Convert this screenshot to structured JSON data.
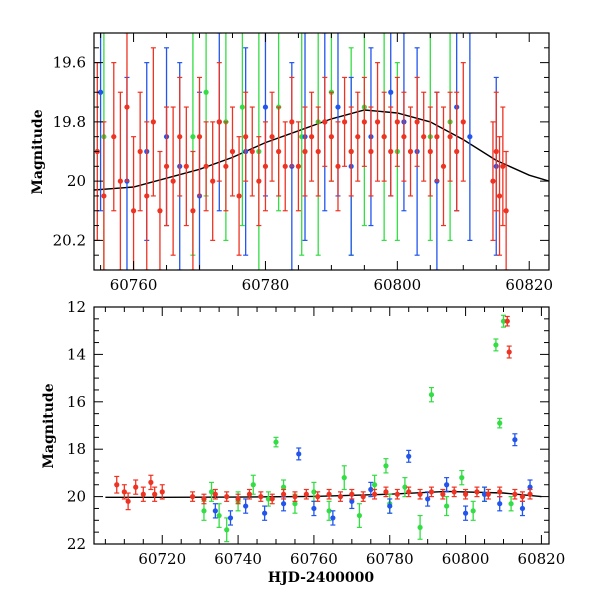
{
  "colors": {
    "green": "#33dd44",
    "blue": "#2255ee",
    "red": "#ee3322",
    "curve": "#000000",
    "frame": "#000000"
  },
  "chart_data": [
    {
      "type": "scatter",
      "title": "",
      "xlabel": "",
      "ylabel": "Magnitude",
      "xlim": [
        60754,
        60823
      ],
      "ylim": [
        20.3,
        19.5
      ],
      "y_inverted": true,
      "xticks": [
        60760,
        60780,
        60800,
        60820
      ],
      "yticks": [
        19.6,
        19.8,
        20,
        20.2
      ],
      "ytick_labels": [
        "19.6",
        "19.8",
        "20",
        "20.2"
      ],
      "grid": false,
      "model_curve": {
        "x": [
          60754,
          60760,
          60765,
          60770,
          60775,
          60780,
          60785,
          60790,
          60795,
          60800,
          60805,
          60810,
          60815,
          60820,
          60823
        ],
        "y": [
          20.03,
          20.02,
          19.99,
          19.96,
          19.92,
          19.87,
          19.83,
          19.79,
          19.76,
          19.77,
          19.8,
          19.86,
          19.93,
          19.98,
          20.0
        ]
      },
      "series": [
        {
          "color": "green",
          "points": [
            [
              60755.5,
              19.85,
              0.45
            ],
            [
              60769,
              19.85,
              0.4
            ],
            [
              60771,
              19.7,
              0.35
            ],
            [
              60774,
              19.8,
              0.4
            ],
            [
              60776.5,
              19.75,
              0.4
            ],
            [
              60779,
              19.9,
              0.45
            ],
            [
              60782,
              19.75,
              0.35
            ],
            [
              60785.5,
              19.85,
              0.4
            ],
            [
              60788,
              19.8,
              0.45
            ],
            [
              60790,
              19.7,
              0.3
            ],
            [
              60793,
              19.9,
              0.35
            ],
            [
              60795,
              19.75,
              0.4
            ],
            [
              60798,
              19.85,
              0.35
            ],
            [
              60800,
              19.9,
              0.3
            ],
            [
              60805,
              19.85,
              0.35
            ],
            [
              60808,
              19.8,
              0.4
            ]
          ]
        },
        {
          "color": "blue",
          "points": [
            [
              60755,
              19.7,
              0.4
            ],
            [
              60759,
              20.0,
              0.35
            ],
            [
              60762,
              19.9,
              0.3
            ],
            [
              60765,
              19.85,
              0.3
            ],
            [
              60767,
              19.95,
              0.35
            ],
            [
              60770,
              20.05,
              0.35
            ],
            [
              60773,
              19.8,
              0.3
            ],
            [
              60777,
              19.9,
              0.35
            ],
            [
              60780,
              19.75,
              0.3
            ],
            [
              60784,
              19.95,
              0.35
            ],
            [
              60786,
              19.85,
              0.35
            ],
            [
              60789,
              19.8,
              0.3
            ],
            [
              60791,
              19.75,
              0.3
            ],
            [
              60793,
              19.95,
              0.3
            ],
            [
              60796,
              19.85,
              0.3
            ],
            [
              60799,
              19.7,
              0.35
            ],
            [
              60801,
              19.8,
              0.3
            ],
            [
              60803,
              19.9,
              0.35
            ],
            [
              60806,
              20.0,
              0.3
            ],
            [
              60809,
              19.75,
              0.35
            ],
            [
              60811,
              19.85,
              0.35
            ],
            [
              60815,
              19.95,
              0.3
            ]
          ]
        },
        {
          "color": "red",
          "points": [
            [
              60754.5,
              19.9,
              0.3
            ],
            [
              60755.5,
              20.05,
              0.25
            ],
            [
              60757,
              19.85,
              0.25
            ],
            [
              60758,
              20.0,
              0.3
            ],
            [
              60759,
              19.75,
              0.25
            ],
            [
              60760,
              20.1,
              0.25
            ],
            [
              60761,
              19.9,
              0.2
            ],
            [
              60762,
              20.05,
              0.25
            ],
            [
              60763,
              19.8,
              0.25
            ],
            [
              60764,
              20.1,
              0.2
            ],
            [
              60765,
              19.95,
              0.2
            ],
            [
              60766,
              20.0,
              0.25
            ],
            [
              60767,
              19.85,
              0.2
            ],
            [
              60768,
              19.95,
              0.2
            ],
            [
              60769,
              20.1,
              0.2
            ],
            [
              60770,
              19.85,
              0.2
            ],
            [
              60771,
              19.95,
              0.15
            ],
            [
              60772,
              20.0,
              0.2
            ],
            [
              60773,
              19.8,
              0.2
            ],
            [
              60774,
              19.95,
              0.15
            ],
            [
              60775,
              19.9,
              0.15
            ],
            [
              60776,
              20.05,
              0.2
            ],
            [
              60777,
              19.85,
              0.15
            ],
            [
              60778,
              19.9,
              0.15
            ],
            [
              60779,
              20.0,
              0.15
            ],
            [
              60780,
              19.95,
              0.15
            ],
            [
              60781,
              19.85,
              0.15
            ],
            [
              60782,
              19.9,
              0.15
            ],
            [
              60783,
              19.95,
              0.15
            ],
            [
              60784,
              19.8,
              0.15
            ],
            [
              60785,
              19.95,
              0.15
            ],
            [
              60786,
              19.9,
              0.15
            ],
            [
              60787,
              19.85,
              0.15
            ],
            [
              60788,
              19.9,
              0.15
            ],
            [
              60789,
              19.8,
              0.15
            ],
            [
              60790,
              19.85,
              0.15
            ],
            [
              60791,
              19.95,
              0.15
            ],
            [
              60792,
              19.8,
              0.15
            ],
            [
              60793,
              19.9,
              0.15
            ],
            [
              60794,
              19.85,
              0.15
            ],
            [
              60795,
              19.8,
              0.15
            ],
            [
              60796,
              19.9,
              0.15
            ],
            [
              60797,
              19.8,
              0.2
            ],
            [
              60798,
              19.85,
              0.15
            ],
            [
              60799,
              19.9,
              0.15
            ],
            [
              60800,
              19.8,
              0.15
            ],
            [
              60801,
              19.85,
              0.15
            ],
            [
              60802,
              19.9,
              0.15
            ],
            [
              60803,
              19.8,
              0.15
            ],
            [
              60804,
              19.85,
              0.15
            ],
            [
              60805,
              19.9,
              0.15
            ],
            [
              60806,
              19.85,
              0.15
            ],
            [
              60807,
              19.95,
              0.2
            ],
            [
              60808,
              19.85,
              0.15
            ],
            [
              60809,
              19.9,
              0.2
            ],
            [
              60810,
              19.8,
              0.2
            ],
            [
              60814.5,
              20.0,
              0.2
            ],
            [
              60815,
              19.9,
              0.2
            ],
            [
              60815.5,
              20.05,
              0.2
            ],
            [
              60816,
              19.95,
              0.2
            ],
            [
              60816.5,
              20.1,
              0.2
            ]
          ]
        }
      ]
    },
    {
      "type": "scatter",
      "title": "",
      "xlabel": "HJD-2400000",
      "ylabel": "Magnitude",
      "xlim": [
        60702,
        60822
      ],
      "ylim": [
        22,
        12
      ],
      "y_inverted": true,
      "xticks": [
        60720,
        60740,
        60760,
        60780,
        60800,
        60820
      ],
      "yticks": [
        12,
        14,
        16,
        18,
        20,
        22
      ],
      "ytick_labels": [
        "12",
        "14",
        "16",
        "18",
        "20",
        "22"
      ],
      "grid": false,
      "model_curve": {
        "x": [
          60705,
          60720,
          60740,
          60760,
          60780,
          60795,
          60810,
          60820
        ],
        "y": [
          20.03,
          20.03,
          20.02,
          19.99,
          19.9,
          19.78,
          19.85,
          20.0
        ]
      },
      "series": [
        {
          "color": "green",
          "points": [
            [
              60731,
              20.6,
              0.4
            ],
            [
              60733,
              19.8,
              0.4
            ],
            [
              60735,
              20.8,
              0.5
            ],
            [
              60737,
              21.4,
              0.5
            ],
            [
              60740,
              20.2,
              0.4
            ],
            [
              60744,
              19.5,
              0.4
            ],
            [
              60748,
              20.1,
              0.3
            ],
            [
              60750,
              17.7,
              0.2
            ],
            [
              60752,
              19.6,
              0.3
            ],
            [
              60755,
              20.3,
              0.4
            ],
            [
              60760,
              19.8,
              0.4
            ],
            [
              60764,
              20.6,
              0.4
            ],
            [
              60768,
              19.2,
              0.5
            ],
            [
              60772,
              20.8,
              0.5
            ],
            [
              60776,
              19.5,
              0.4
            ],
            [
              60779,
              18.7,
              0.3
            ],
            [
              60780,
              20.3,
              0.4
            ],
            [
              60784,
              19.6,
              0.4
            ],
            [
              60788,
              21.3,
              0.5
            ],
            [
              60791,
              15.7,
              0.3
            ],
            [
              60795,
              20.4,
              0.4
            ],
            [
              60799,
              19.2,
              0.3
            ],
            [
              60802,
              20.6,
              0.4
            ],
            [
              60805,
              19.9,
              0.3
            ],
            [
              60808,
              13.6,
              0.25
            ],
            [
              60809,
              16.9,
              0.2
            ],
            [
              60810,
              12.6,
              0.25
            ],
            [
              60812,
              20.3,
              0.3
            ]
          ]
        },
        {
          "color": "blue",
          "points": [
            [
              60734,
              20.6,
              0.3
            ],
            [
              60738,
              20.9,
              0.3
            ],
            [
              60742,
              20.4,
              0.3
            ],
            [
              60747,
              20.7,
              0.3
            ],
            [
              60752,
              20.3,
              0.3
            ],
            [
              60756,
              18.2,
              0.25
            ],
            [
              60760,
              20.5,
              0.3
            ],
            [
              60765,
              20.9,
              0.3
            ],
            [
              60770,
              20.2,
              0.3
            ],
            [
              60775,
              19.7,
              0.3
            ],
            [
              60780,
              20.4,
              0.3
            ],
            [
              60785,
              18.3,
              0.25
            ],
            [
              60790,
              20.1,
              0.3
            ],
            [
              60795,
              19.5,
              0.3
            ],
            [
              60800,
              20.7,
              0.3
            ],
            [
              60805,
              19.9,
              0.3
            ],
            [
              60809,
              20.3,
              0.3
            ],
            [
              60813,
              17.6,
              0.25
            ],
            [
              60815,
              20.5,
              0.3
            ],
            [
              60817,
              19.6,
              0.3
            ]
          ]
        },
        {
          "color": "red",
          "points": [
            [
              60708,
              19.5,
              0.35
            ],
            [
              60710,
              19.8,
              0.3
            ],
            [
              60711,
              20.2,
              0.35
            ],
            [
              60713,
              19.6,
              0.3
            ],
            [
              60715,
              19.9,
              0.3
            ],
            [
              60717,
              19.4,
              0.3
            ],
            [
              60718,
              19.9,
              0.3
            ],
            [
              60720,
              19.8,
              0.3
            ],
            [
              60728,
              20.0,
              0.2
            ],
            [
              60731,
              20.1,
              0.2
            ],
            [
              60734,
              19.9,
              0.2
            ],
            [
              60737,
              20.0,
              0.2
            ],
            [
              60740,
              20.1,
              0.2
            ],
            [
              60743,
              19.9,
              0.2
            ],
            [
              60746,
              20.0,
              0.2
            ],
            [
              60749,
              20.1,
              0.2
            ],
            [
              60752,
              19.9,
              0.2
            ],
            [
              60755,
              20.0,
              0.2
            ],
            [
              60758,
              19.9,
              0.2
            ],
            [
              60761,
              20.0,
              0.2
            ],
            [
              60764,
              19.9,
              0.2
            ],
            [
              60767,
              20.0,
              0.2
            ],
            [
              60770,
              19.9,
              0.2
            ],
            [
              60773,
              20.0,
              0.2
            ],
            [
              60776,
              19.9,
              0.2
            ],
            [
              60779,
              19.8,
              0.2
            ],
            [
              60782,
              19.9,
              0.2
            ],
            [
              60785,
              19.8,
              0.2
            ],
            [
              60788,
              19.9,
              0.2
            ],
            [
              60791,
              19.8,
              0.2
            ],
            [
              60794,
              19.9,
              0.2
            ],
            [
              60797,
              19.8,
              0.2
            ],
            [
              60800,
              19.9,
              0.2
            ],
            [
              60803,
              19.8,
              0.2
            ],
            [
              60806,
              19.9,
              0.2
            ],
            [
              60809,
              19.8,
              0.2
            ],
            [
              60811,
              12.6,
              0.2
            ],
            [
              60811.5,
              13.9,
              0.25
            ],
            [
              60813,
              19.9,
              0.2
            ],
            [
              60815,
              20.0,
              0.2
            ],
            [
              60817,
              19.9,
              0.2
            ]
          ]
        }
      ]
    }
  ]
}
